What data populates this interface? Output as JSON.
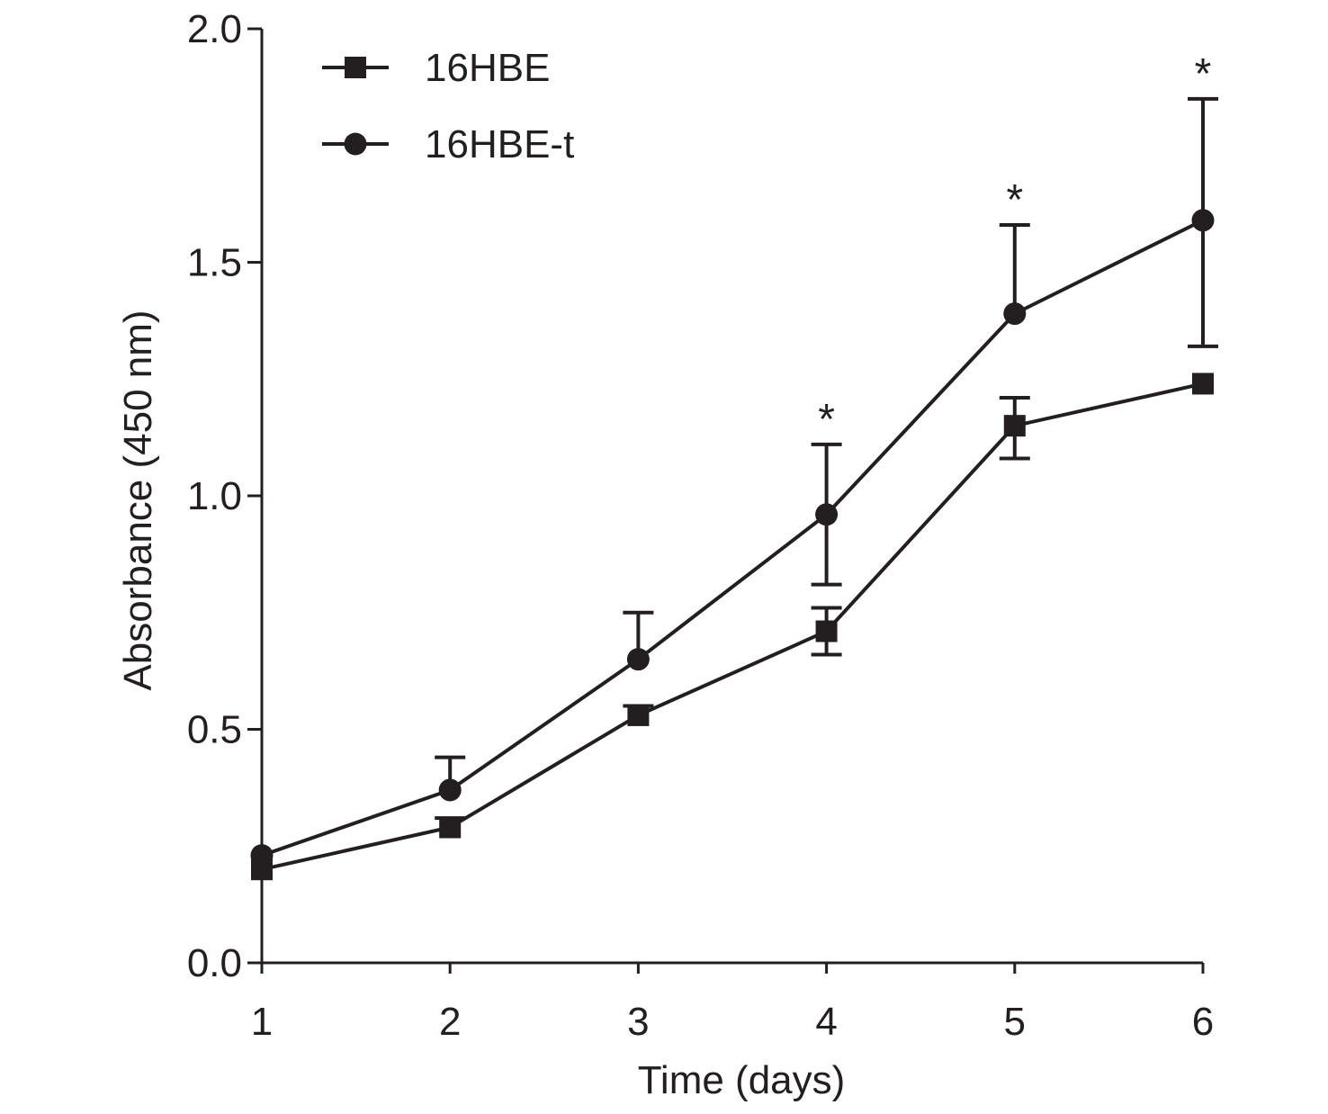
{
  "chart_data": {
    "type": "line",
    "xlabel": "Time (days)",
    "ylabel": "Absorbance (450 nm)",
    "x": [
      1,
      2,
      3,
      4,
      5,
      6
    ],
    "x_tick_labels": [
      "1",
      "2",
      "3",
      "4",
      "5",
      "6"
    ],
    "ylim": [
      0,
      2.0
    ],
    "y_ticks": [
      0.0,
      0.5,
      1.0,
      1.5,
      2.0
    ],
    "y_tick_labels": [
      "0.0",
      "0.5",
      "1.0",
      "1.5",
      "2.0"
    ],
    "grid": false,
    "legend_position": "top-left",
    "series": [
      {
        "name": "16HBE",
        "marker": "square",
        "values": [
          0.2,
          0.29,
          0.53,
          0.71,
          1.15,
          1.24
        ],
        "error_upper": [
          0.2,
          0.31,
          0.55,
          0.76,
          1.21,
          1.24
        ],
        "error_lower": [
          0.2,
          0.29,
          0.53,
          0.66,
          1.08,
          1.24
        ]
      },
      {
        "name": "16HBE-t",
        "marker": "circle",
        "values": [
          0.23,
          0.37,
          0.65,
          0.96,
          1.39,
          1.59
        ],
        "error_upper": [
          0.23,
          0.44,
          0.75,
          1.11,
          1.58,
          1.85
        ],
        "error_lower": [
          0.23,
          0.37,
          0.65,
          0.81,
          1.39,
          1.32
        ]
      }
    ],
    "annotations": [
      {
        "x": 4,
        "y": 1.11,
        "text": "*"
      },
      {
        "x": 5,
        "y": 1.58,
        "text": "*"
      },
      {
        "x": 6,
        "y": 1.85,
        "text": "*"
      }
    ],
    "colors": {
      "ink": "#231f20",
      "background": "#ffffff"
    }
  }
}
